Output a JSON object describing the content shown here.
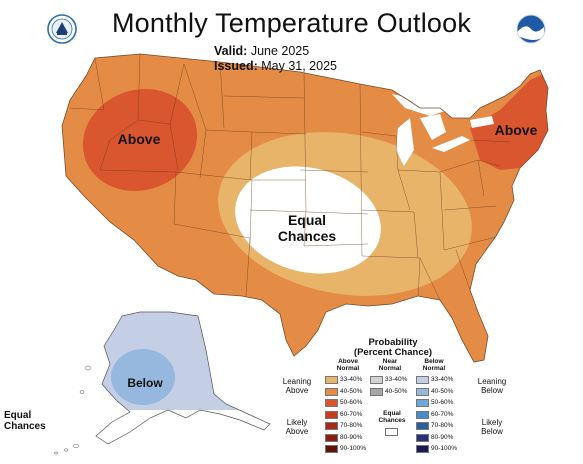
{
  "header": {
    "title": "Monthly Temperature Outlook",
    "valid_label": "Valid:",
    "valid_value": "June 2025",
    "issued_label": "Issued:",
    "issued_value": "May 31, 2025"
  },
  "logos": {
    "left": "noaa-nws-seal-icon",
    "right": "noaa-logo-icon"
  },
  "map": {
    "regions": [
      {
        "id": "west-above-core",
        "label": "Above",
        "category": "Above Normal",
        "probability": "50-60%"
      },
      {
        "id": "northeast-above-core",
        "label": "Above",
        "category": "Above Normal",
        "probability": "50-60%"
      },
      {
        "id": "central-equal",
        "label": "Equal\nChances",
        "category": "Equal Chances"
      },
      {
        "id": "alaska-below",
        "label": "Below",
        "category": "Below Normal",
        "probability": "33-40%"
      },
      {
        "id": "alaska-south-equal",
        "label": "Equal\nChances",
        "category": "Equal Chances"
      }
    ],
    "colors": {
      "ocean": "#ffffff",
      "above_33_40": "#e8b46a",
      "above_40_50": "#e48c46",
      "above_50_60": "#d9562e",
      "equal": "#ffffff",
      "below_33_40": "#c4cfe6",
      "below_40_50": "#96b8de",
      "border": "#6b3a1a"
    }
  },
  "legend": {
    "title_line1": "Probability",
    "title_line2": "(Percent Chance)",
    "col_above": "Above\nNormal",
    "col_near": "Near\nNormal",
    "col_below": "Below\nNormal",
    "leaning_above": "Leaning\nAbove",
    "likely_above": "Likely\nAbove",
    "leaning_below": "Leaning\nBelow",
    "likely_below": "Likely\nBelow",
    "equal_chances": "Equal\nChances",
    "above": [
      {
        "range": "33-40%",
        "color": "#e8b46a"
      },
      {
        "range": "40-50%",
        "color": "#e48c46"
      },
      {
        "range": "50-60%",
        "color": "#d9562e"
      },
      {
        "range": "60-70%",
        "color": "#c93a1e"
      },
      {
        "range": "70-80%",
        "color": "#a82a12"
      },
      {
        "range": "80-90%",
        "color": "#8a1f0c"
      },
      {
        "range": "90-100%",
        "color": "#5e1406"
      }
    ],
    "near": [
      {
        "range": "33-40%",
        "color": "#d3d3d3"
      },
      {
        "range": "40-50%",
        "color": "#a6a6a6"
      }
    ],
    "below": [
      {
        "range": "33-40%",
        "color": "#c4cfe6"
      },
      {
        "range": "40-50%",
        "color": "#96b8de"
      },
      {
        "range": "50-60%",
        "color": "#6fa6d8"
      },
      {
        "range": "60-70%",
        "color": "#4a8cc9"
      },
      {
        "range": "70-80%",
        "color": "#2a5f9e"
      },
      {
        "range": "80-90%",
        "color": "#2a2f78"
      },
      {
        "range": "90-100%",
        "color": "#1c1850"
      }
    ]
  }
}
